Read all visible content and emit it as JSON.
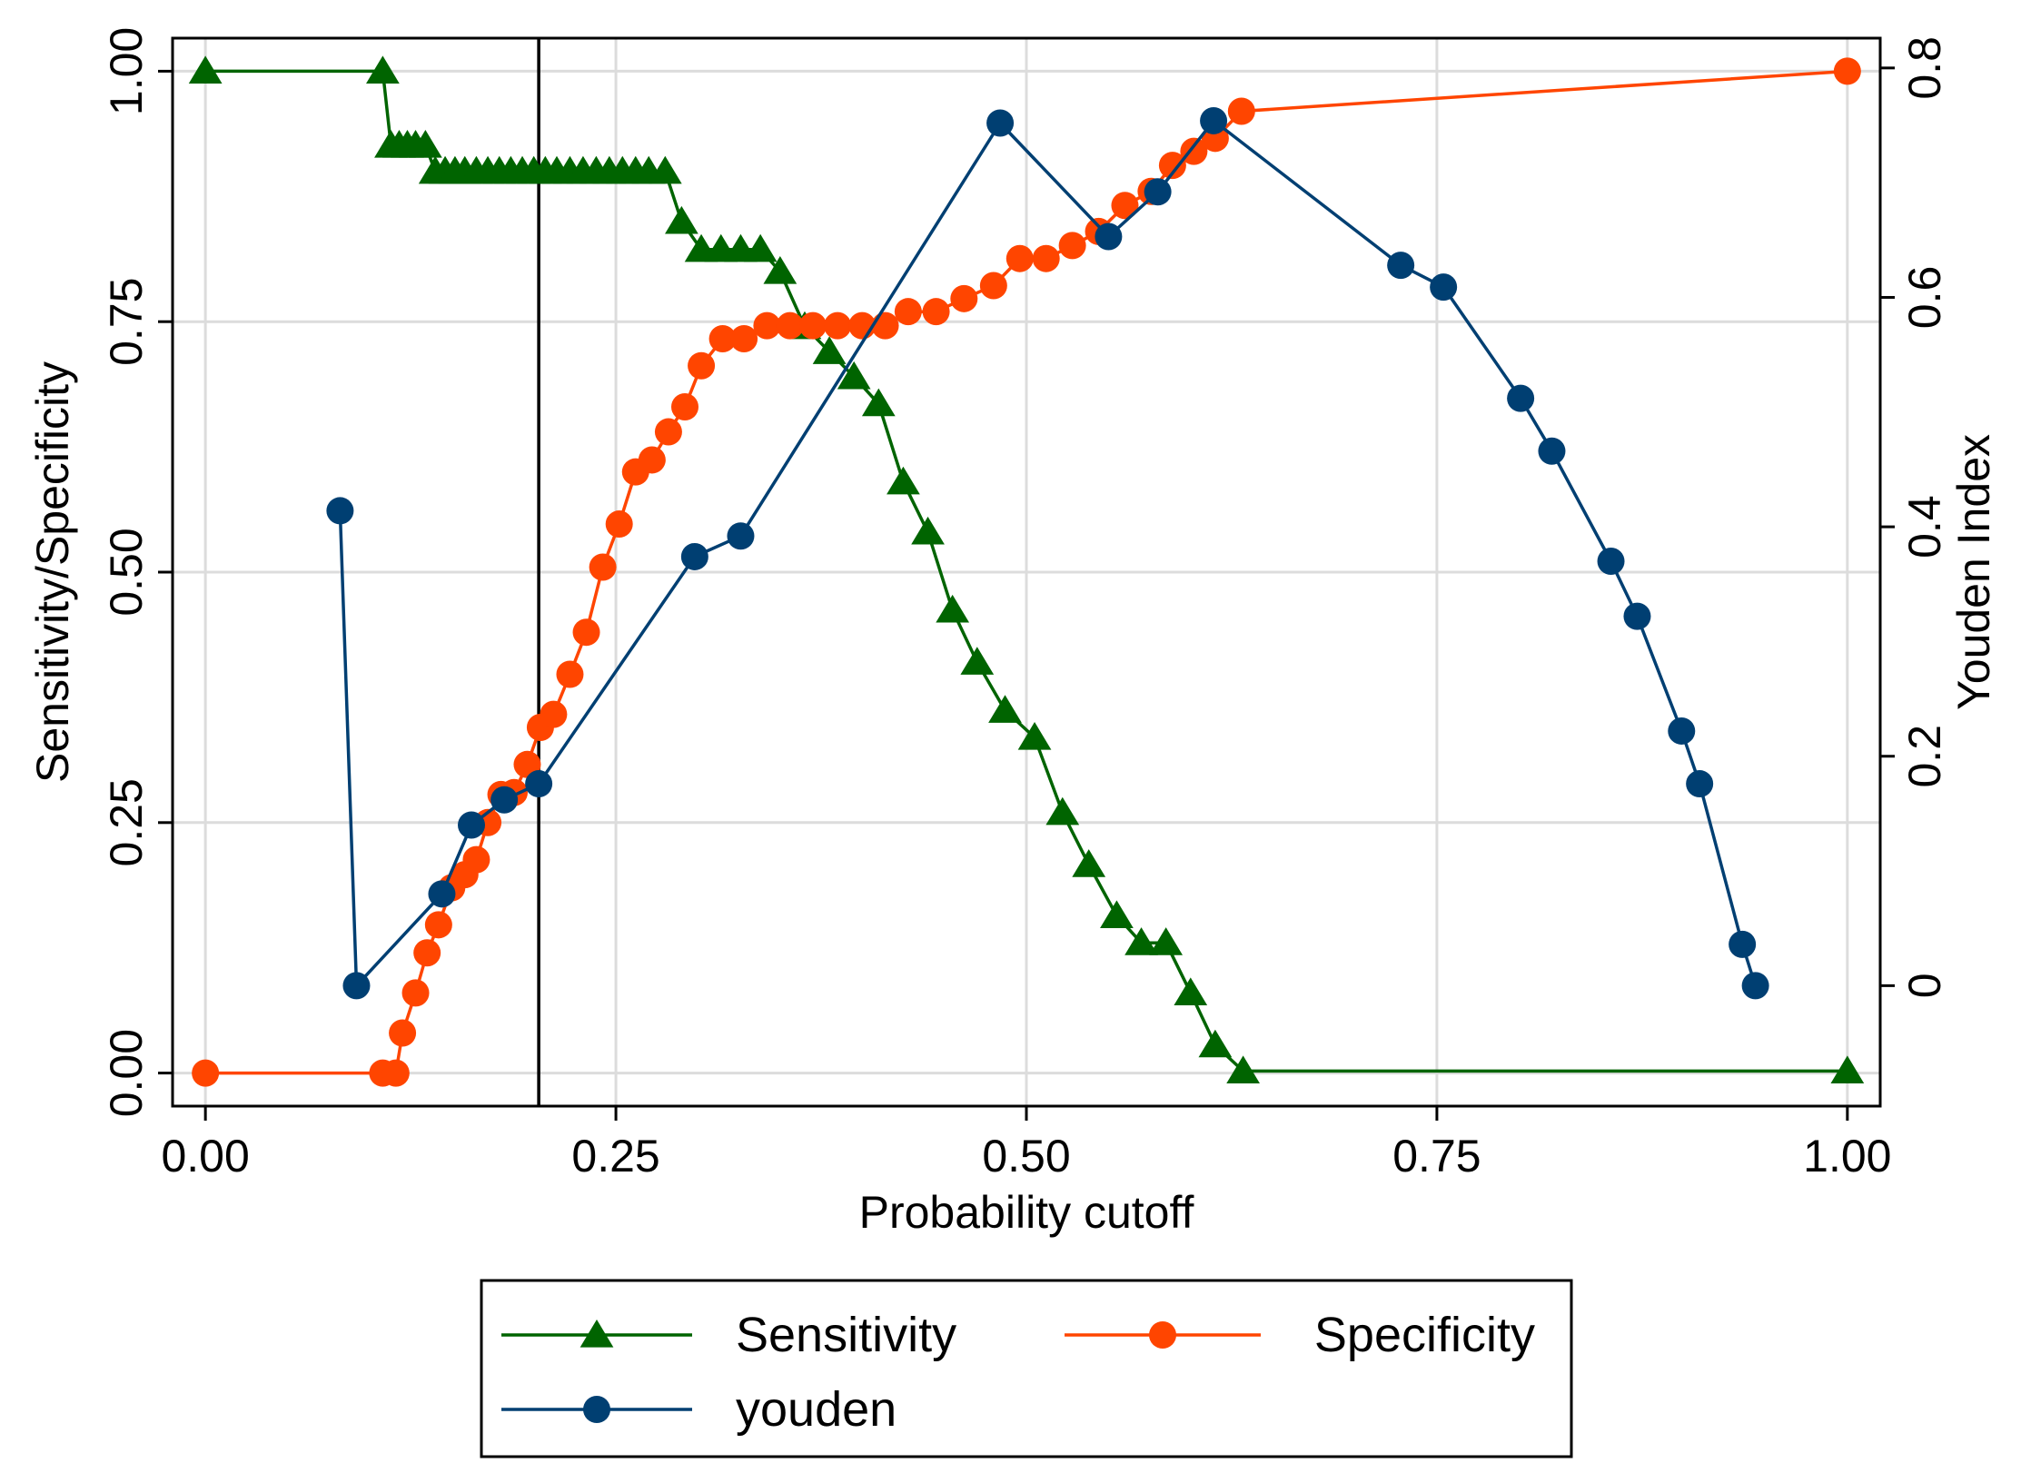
{
  "chart_data": {
    "type": "line",
    "title": "",
    "xlabel": "Probability cutoff",
    "ylabel": "Sensitivity/Specificity",
    "y2label": "Youden Index",
    "xlim": [
      -0.02,
      1.02
    ],
    "ylim": [
      -0.033,
      1.033
    ],
    "y2lim": [
      -0.105,
      0.826
    ],
    "x_ticks": [
      0,
      0.25,
      0.5,
      0.75,
      1
    ],
    "x_tick_labels": [
      "0.00",
      "0.25",
      "0.50",
      "0.75",
      "1.00"
    ],
    "y_ticks": [
      0,
      0.25,
      0.5,
      0.75,
      1
    ],
    "y_tick_labels": [
      "0.00",
      "0.25",
      "0.50",
      "0.75",
      "1.00"
    ],
    "y2_ticks": [
      0,
      0.2,
      0.4,
      0.6,
      0.8
    ],
    "y2_tick_labels": [
      "0",
      "0.2",
      "0.4",
      "0.6",
      "0.8"
    ],
    "grid": true,
    "reference_line_x": 0.203,
    "legend_position": "bottom",
    "series": [
      {
        "name": "Sensitivity",
        "axis": "left",
        "color": "#006400",
        "marker": "triangle",
        "x": [
          0,
          0.108,
          0.113,
          0.118,
          0.123,
          0.128,
          0.134,
          0.14,
          0.146,
          0.152,
          0.158,
          0.165,
          0.172,
          0.179,
          0.186,
          0.193,
          0.2,
          0.207,
          0.214,
          0.222,
          0.23,
          0.238,
          0.246,
          0.254,
          0.262,
          0.27,
          0.28,
          0.29,
          0.302,
          0.314,
          0.326,
          0.338,
          0.35,
          0.365,
          0.38,
          0.395,
          0.41,
          0.425,
          0.44,
          0.455,
          0.47,
          0.487,
          0.505,
          0.522,
          0.538,
          0.555,
          0.57,
          0.585,
          0.6,
          0.615,
          0.632,
          1
        ],
        "values": [
          1,
          1,
          0.926,
          0.926,
          0.926,
          0.926,
          0.926,
          0.9,
          0.9,
          0.9,
          0.9,
          0.9,
          0.9,
          0.9,
          0.9,
          0.9,
          0.9,
          0.9,
          0.9,
          0.9,
          0.9,
          0.9,
          0.9,
          0.9,
          0.9,
          0.9,
          0.9,
          0.85,
          0.822,
          0.822,
          0.822,
          0.822,
          0.8,
          0.745,
          0.72,
          0.695,
          0.668,
          0.59,
          0.54,
          0.462,
          0.41,
          0.362,
          0.335,
          0.26,
          0.208,
          0.157,
          0.13,
          0.13,
          0.08,
          0.028,
          0.002,
          0.002
        ]
      },
      {
        "name": "Specificity",
        "axis": "left",
        "color": "#ff4500",
        "marker": "circle",
        "x": [
          0,
          0.108,
          0.116,
          0.12,
          0.128,
          0.135,
          0.142,
          0.15,
          0.158,
          0.165,
          0.172,
          0.18,
          0.188,
          0.196,
          0.204,
          0.212,
          0.222,
          0.232,
          0.242,
          0.252,
          0.262,
          0.272,
          0.282,
          0.292,
          0.302,
          0.315,
          0.328,
          0.342,
          0.356,
          0.37,
          0.385,
          0.4,
          0.414,
          0.428,
          0.445,
          0.462,
          0.48,
          0.496,
          0.512,
          0.528,
          0.544,
          0.56,
          0.576,
          0.589,
          0.602,
          0.615,
          0.631,
          1
        ],
        "values": [
          0,
          0,
          0,
          0.04,
          0.08,
          0.12,
          0.148,
          0.185,
          0.198,
          0.213,
          0.25,
          0.278,
          0.28,
          0.308,
          0.345,
          0.358,
          0.398,
          0.44,
          0.505,
          0.548,
          0.6,
          0.612,
          0.64,
          0.665,
          0.706,
          0.733,
          0.733,
          0.746,
          0.746,
          0.746,
          0.746,
          0.746,
          0.746,
          0.76,
          0.76,
          0.773,
          0.786,
          0.813,
          0.813,
          0.826,
          0.84,
          0.866,
          0.88,
          0.906,
          0.92,
          0.933,
          0.96,
          1
        ]
      },
      {
        "name": "youden",
        "axis": "right",
        "color": "#003f72",
        "marker": "circle",
        "x": [
          0.082,
          0.092,
          0.144,
          0.162,
          0.182,
          0.203,
          0.298,
          0.326,
          0.484,
          0.55,
          0.58,
          0.614,
          0.728,
          0.754,
          0.801,
          0.82,
          0.856,
          0.872,
          0.899,
          0.91,
          0.936,
          0.944
        ],
        "values": [
          0.414,
          0.0,
          0.08,
          0.14,
          0.162,
          0.176,
          0.374,
          0.392,
          0.752,
          0.653,
          0.692,
          0.754,
          0.628,
          0.609,
          0.512,
          0.466,
          0.37,
          0.322,
          0.222,
          0.176,
          0.036,
          0.0
        ]
      }
    ]
  },
  "legend": {
    "items": [
      {
        "label": "Sensitivity"
      },
      {
        "label": "Specificity"
      },
      {
        "label": "youden"
      }
    ]
  }
}
